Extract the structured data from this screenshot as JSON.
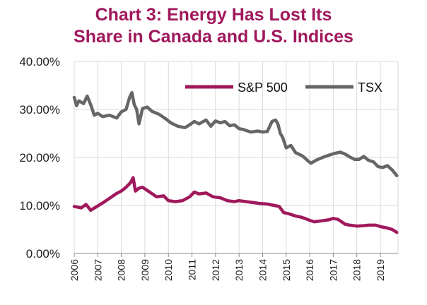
{
  "chart_data": {
    "type": "line",
    "title_line1": "Chart 3: Energy Has Lost Its",
    "title_line2": "Share in Canada and U.S. Indices",
    "xlabel": "",
    "ylabel": "",
    "ylim": [
      0,
      40
    ],
    "xlim": [
      2006,
      2019.75
    ],
    "y_ticks": [
      "0.00%",
      "10.00%",
      "20.00%",
      "30.00%",
      "40.00%"
    ],
    "x_ticks": [
      "2006",
      "2007",
      "2008",
      "2009",
      "2010",
      "2011",
      "2012",
      "2013",
      "2014",
      "2015",
      "2016",
      "2017",
      "2018",
      "2019"
    ],
    "grid": true,
    "legend_position": "top-right",
    "colors": {
      "title": "#a0185c",
      "sp500": "#a0185c",
      "tsx": "#666666",
      "grid": "#d9d9d9"
    },
    "series": [
      {
        "name": "S&P 500",
        "x": [
          2006.0,
          2006.3,
          2006.5,
          2006.7,
          2006.9,
          2007.2,
          2007.5,
          2007.8,
          2008.0,
          2008.2,
          2008.4,
          2008.5,
          2008.6,
          2008.75,
          2008.9,
          2009.2,
          2009.5,
          2009.8,
          2010.0,
          2010.3,
          2010.6,
          2010.9,
          2011.1,
          2011.3,
          2011.6,
          2011.9,
          2012.2,
          2012.5,
          2012.8,
          2013.0,
          2013.3,
          2013.6,
          2013.9,
          2014.2,
          2014.5,
          2014.7,
          2014.9,
          2015.1,
          2015.4,
          2015.6,
          2015.8,
          2016.0,
          2016.2,
          2016.5,
          2016.8,
          2017.0,
          2017.2,
          2017.5,
          2017.7,
          2018.0,
          2018.3,
          2018.5,
          2018.8,
          2019.0,
          2019.3,
          2019.5,
          2019.7
        ],
        "y": [
          9.8,
          9.5,
          10.2,
          9.0,
          9.6,
          10.5,
          11.5,
          12.5,
          13.0,
          13.8,
          14.8,
          15.8,
          13.0,
          13.6,
          13.8,
          12.8,
          11.8,
          12.0,
          11.0,
          10.8,
          11.0,
          11.8,
          12.8,
          12.4,
          12.6,
          11.8,
          11.6,
          11.0,
          10.8,
          11.0,
          10.8,
          10.6,
          10.4,
          10.3,
          10.0,
          9.8,
          8.5,
          8.3,
          7.8,
          7.6,
          7.3,
          6.9,
          6.6,
          6.8,
          7.0,
          7.3,
          7.1,
          6.1,
          5.9,
          5.7,
          5.8,
          5.9,
          5.9,
          5.6,
          5.3,
          5.0,
          4.4
        ]
      },
      {
        "name": "TSX",
        "x": [
          2006.0,
          2006.1,
          2006.2,
          2006.4,
          2006.55,
          2006.7,
          2006.85,
          2007.0,
          2007.2,
          2007.5,
          2007.8,
          2008.0,
          2008.2,
          2008.35,
          2008.45,
          2008.55,
          2008.65,
          2008.75,
          2008.9,
          2009.1,
          2009.3,
          2009.6,
          2009.9,
          2010.1,
          2010.4,
          2010.7,
          2010.9,
          2011.1,
          2011.3,
          2011.6,
          2011.8,
          2012.0,
          2012.2,
          2012.4,
          2012.6,
          2012.8,
          2013.0,
          2013.2,
          2013.5,
          2013.8,
          2014.0,
          2014.2,
          2014.4,
          2014.55,
          2014.65,
          2014.75,
          2014.85,
          2015.0,
          2015.2,
          2015.4,
          2015.7,
          2015.9,
          2016.05,
          2016.3,
          2016.6,
          2016.9,
          2017.1,
          2017.3,
          2017.5,
          2017.7,
          2017.9,
          2018.1,
          2018.3,
          2018.5,
          2018.7,
          2018.9,
          2019.1,
          2019.3,
          2019.5,
          2019.7
        ],
        "y": [
          32.5,
          30.8,
          31.8,
          31.2,
          32.8,
          31.0,
          28.8,
          29.2,
          28.5,
          28.8,
          28.2,
          29.5,
          30.0,
          32.5,
          33.5,
          31.0,
          30.0,
          27.0,
          30.2,
          30.5,
          29.6,
          29.0,
          28.0,
          27.2,
          26.5,
          26.2,
          26.8,
          27.5,
          27.0,
          27.8,
          26.5,
          27.6,
          27.2,
          27.5,
          26.6,
          26.8,
          26.0,
          25.8,
          25.3,
          25.5,
          25.3,
          25.4,
          27.5,
          27.8,
          27.0,
          25.0,
          24.2,
          22.0,
          22.5,
          21.0,
          20.3,
          19.4,
          18.8,
          19.5,
          20.1,
          20.6,
          20.9,
          21.1,
          20.7,
          20.1,
          19.6,
          19.6,
          20.2,
          19.4,
          19.1,
          18.1,
          17.9,
          18.3,
          17.4,
          16.2
        ]
      }
    ]
  }
}
